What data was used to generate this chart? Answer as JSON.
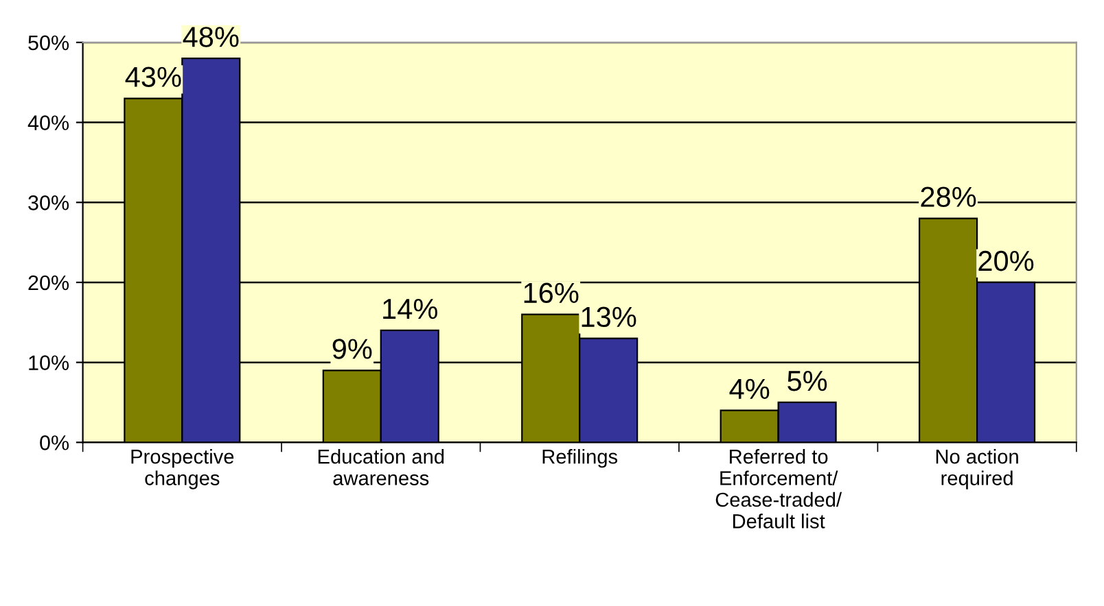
{
  "chart_data": {
    "type": "bar",
    "categories": [
      "Prospective\nchanges",
      "Education and\nawareness",
      "Refilings",
      "Referred to\nEnforcement/\nCease-traded/\nDefault list",
      "No action\nrequired"
    ],
    "series": [
      {
        "color": "#808000",
        "values": [
          43,
          9,
          16,
          4,
          28
        ],
        "value_labels": [
          "43%",
          "9%",
          "16%",
          "4%",
          "28%"
        ]
      },
      {
        "color": "#333399",
        "values": [
          48,
          14,
          13,
          5,
          20
        ],
        "value_labels": [
          "48%",
          "14%",
          "13%",
          "5%",
          "20%"
        ]
      }
    ],
    "ylim": [
      0,
      50
    ],
    "yticks": [
      {
        "value": 0,
        "label": "0%"
      },
      {
        "value": 10,
        "label": "10%"
      },
      {
        "value": 20,
        "label": "20%"
      },
      {
        "value": 30,
        "label": "30%"
      },
      {
        "value": 40,
        "label": "40%"
      },
      {
        "value": 50,
        "label": "50%"
      }
    ],
    "grid": "y"
  }
}
